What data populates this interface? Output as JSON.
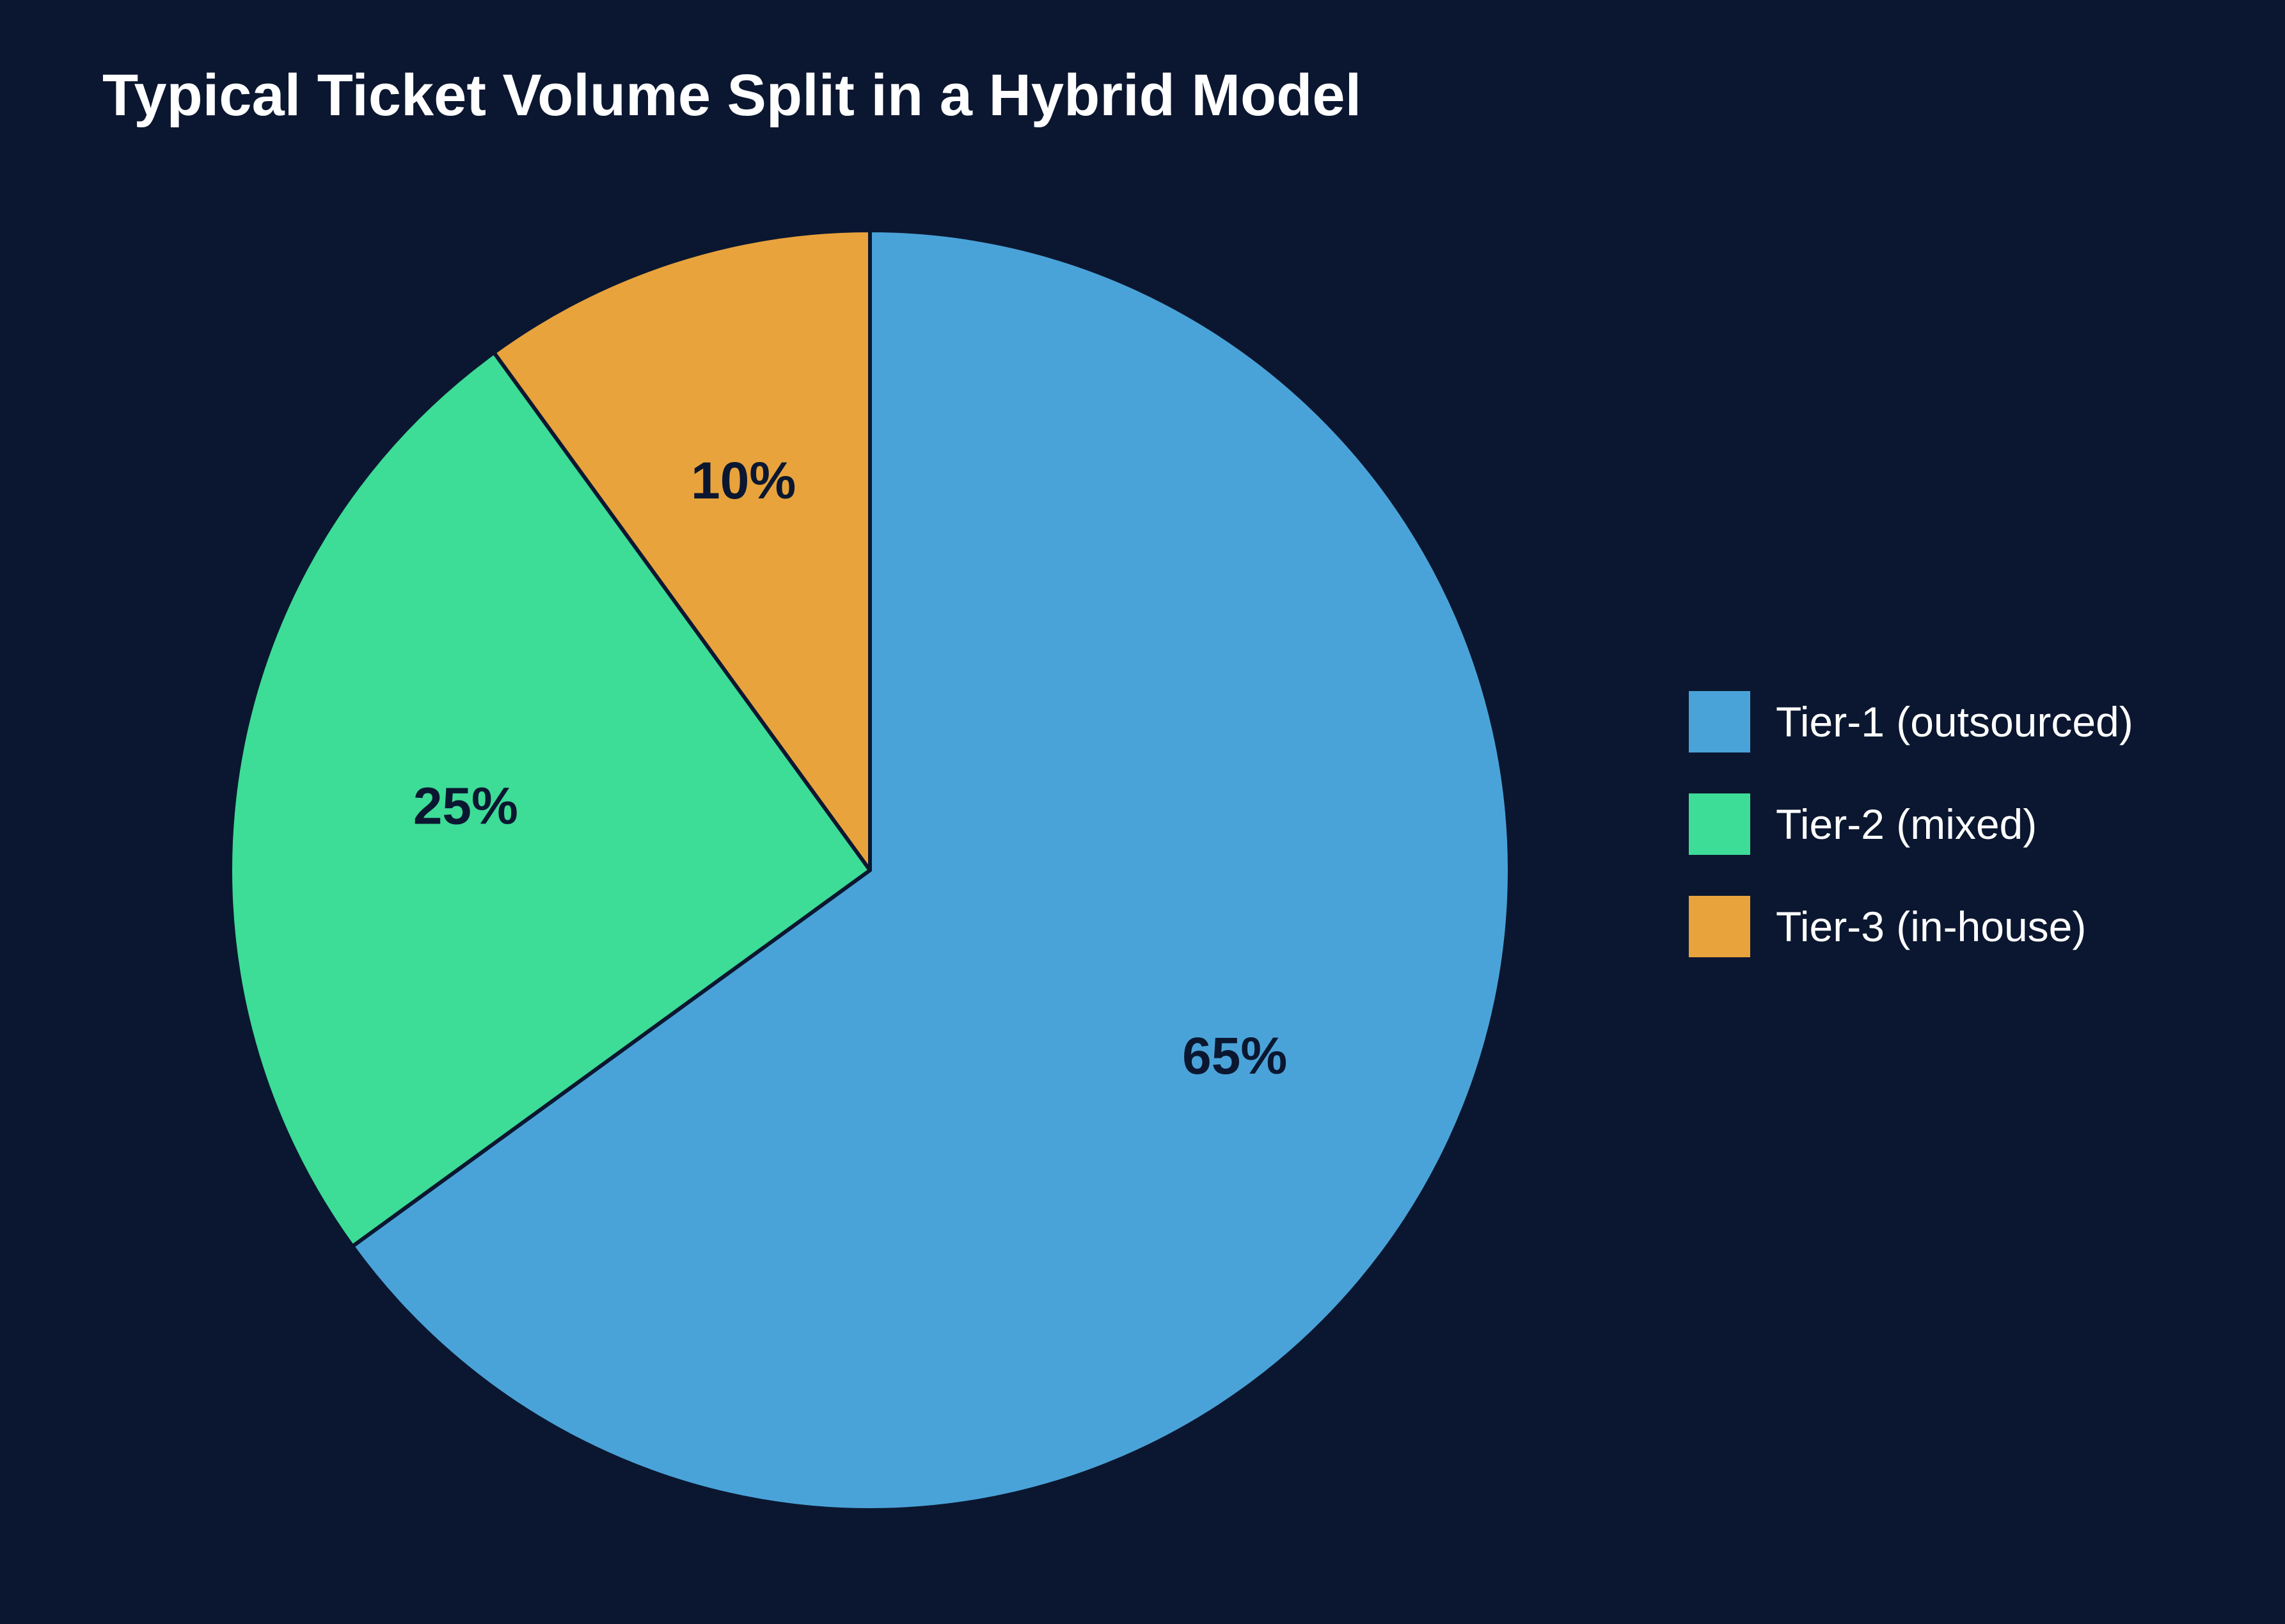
{
  "colors": {
    "background": "#0b1730",
    "title": "#ffffff",
    "slice_border": "#0b1730",
    "slice_label": "#0b1730",
    "legend_text": "#ffffff"
  },
  "chart_data": {
    "type": "pie",
    "title": "Typical Ticket Volume Split in a Hybrid Model",
    "start_angle_deg": 0,
    "direction": "clockwise",
    "legend_position": "right",
    "slices": [
      {
        "label": "Tier-1 (outsourced)",
        "value": 65,
        "display": "65%",
        "color": "#4aa3d8"
      },
      {
        "label": "Tier-2 (mixed)",
        "value": 25,
        "display": "25%",
        "color": "#3ddc97"
      },
      {
        "label": "Tier-3 (in-house)",
        "value": 10,
        "display": "10%",
        "color": "#e8a33c"
      }
    ]
  }
}
